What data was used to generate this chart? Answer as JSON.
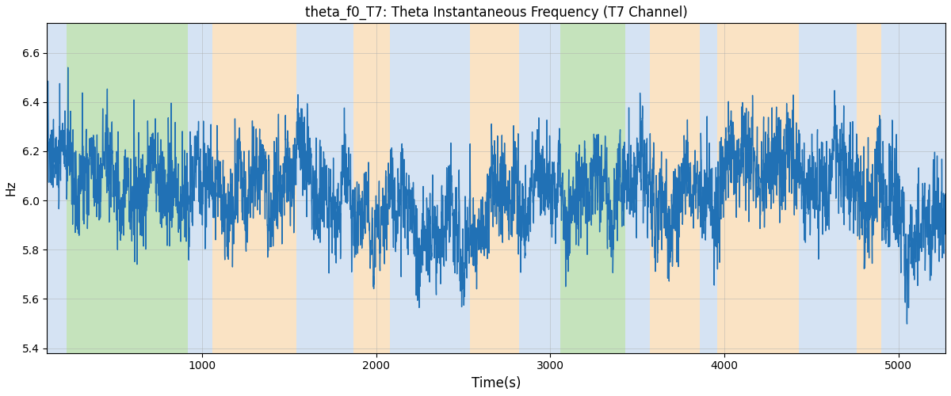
{
  "title": "theta_f0_T7: Theta Instantaneous Frequency (T7 Channel)",
  "xlabel": "Time(s)",
  "ylabel": "Hz",
  "xlim": [
    110,
    5270
  ],
  "ylim": [
    5.38,
    6.72
  ],
  "yticks": [
    5.4,
    5.6,
    5.8,
    6.0,
    6.2,
    6.4,
    6.6
  ],
  "xticks": [
    1000,
    2000,
    3000,
    4000,
    5000
  ],
  "line_color": "#2171b5",
  "line_width": 1.0,
  "bg_regions": [
    {
      "xmin": 110,
      "xmax": 220,
      "color": "#adc8e8",
      "alpha": 0.5
    },
    {
      "xmin": 220,
      "xmax": 920,
      "color": "#8dc87a",
      "alpha": 0.5
    },
    {
      "xmin": 920,
      "xmax": 1060,
      "color": "#adc8e8",
      "alpha": 0.5
    },
    {
      "xmin": 1060,
      "xmax": 1540,
      "color": "#f7c98a",
      "alpha": 0.5
    },
    {
      "xmin": 1540,
      "xmax": 1870,
      "color": "#adc8e8",
      "alpha": 0.5
    },
    {
      "xmin": 1870,
      "xmax": 2080,
      "color": "#f7c98a",
      "alpha": 0.5
    },
    {
      "xmin": 2080,
      "xmax": 2540,
      "color": "#adc8e8",
      "alpha": 0.5
    },
    {
      "xmin": 2540,
      "xmax": 2820,
      "color": "#f7c98a",
      "alpha": 0.5
    },
    {
      "xmin": 2820,
      "xmax": 2960,
      "color": "#adc8e8",
      "alpha": 0.5
    },
    {
      "xmin": 2960,
      "xmax": 3060,
      "color": "#adc8e8",
      "alpha": 0.5
    },
    {
      "xmin": 3060,
      "xmax": 3430,
      "color": "#8dc87a",
      "alpha": 0.5
    },
    {
      "xmin": 3430,
      "xmax": 3570,
      "color": "#adc8e8",
      "alpha": 0.5
    },
    {
      "xmin": 3570,
      "xmax": 3860,
      "color": "#f7c98a",
      "alpha": 0.5
    },
    {
      "xmin": 3860,
      "xmax": 3960,
      "color": "#adc8e8",
      "alpha": 0.5
    },
    {
      "xmin": 3960,
      "xmax": 4430,
      "color": "#f7c98a",
      "alpha": 0.5
    },
    {
      "xmin": 4430,
      "xmax": 4760,
      "color": "#adc8e8",
      "alpha": 0.5
    },
    {
      "xmin": 4760,
      "xmax": 4900,
      "color": "#f7c98a",
      "alpha": 0.5
    },
    {
      "xmin": 4900,
      "xmax": 5270,
      "color": "#adc8e8",
      "alpha": 0.5
    }
  ],
  "n_points": 5160,
  "base_freq": 6.02,
  "noise_amp": 0.14,
  "seed": 17
}
